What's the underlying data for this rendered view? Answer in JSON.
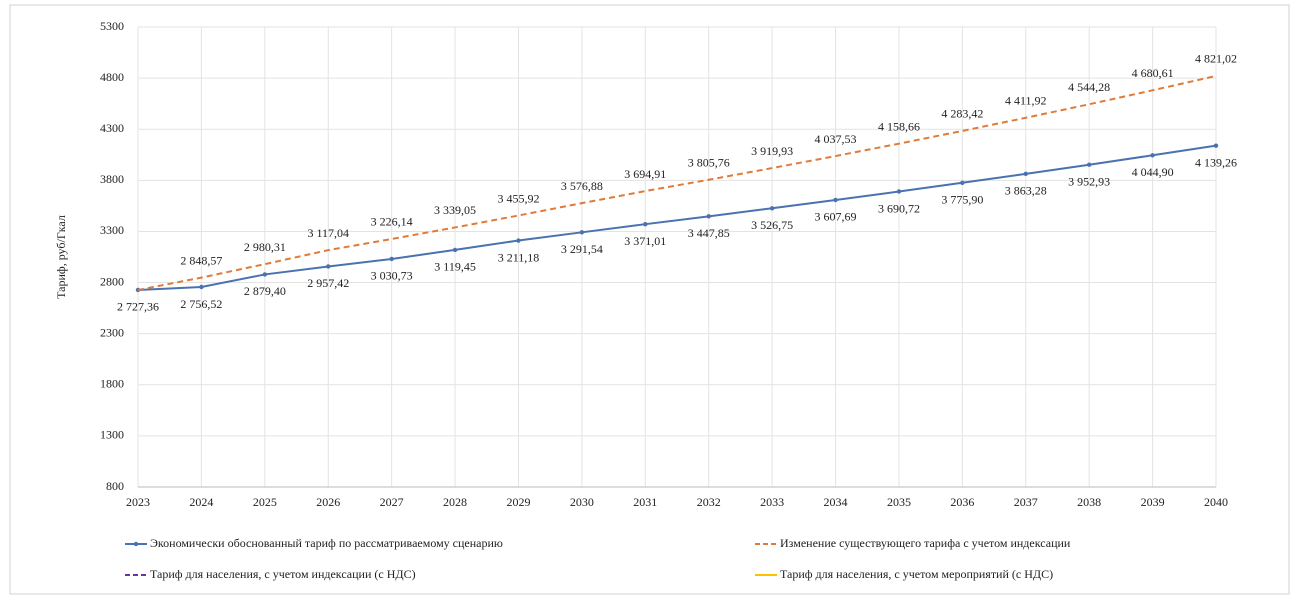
{
  "chart_data": {
    "type": "line",
    "y_label": "Тариф, руб/Гкал",
    "x": [
      2023,
      2024,
      2025,
      2026,
      2027,
      2028,
      2029,
      2030,
      2031,
      2032,
      2033,
      2034,
      2035,
      2036,
      2037,
      2038,
      2039,
      2040
    ],
    "xlim": [
      2023,
      2040
    ],
    "xticks": [
      2023,
      2024,
      2025,
      2026,
      2027,
      2028,
      2029,
      2030,
      2031,
      2032,
      2033,
      2034,
      2035,
      2036,
      2037,
      2038,
      2039,
      2040
    ],
    "ylim": [
      800,
      5300
    ],
    "yticks": [
      800,
      1300,
      1800,
      2300,
      2800,
      3300,
      3800,
      4300,
      4800,
      5300
    ],
    "grid": true,
    "legend": "bottom",
    "series": [
      {
        "name": "Экономически обоснованный тариф по рассматриваемому сценарию",
        "color": "#4a72b0",
        "line_style": "solid",
        "markers": true,
        "values": [
          2727.36,
          2756.52,
          2879.4,
          2957.42,
          3030.73,
          3119.45,
          3211.18,
          3291.54,
          3371.01,
          3447.85,
          3526.75,
          3607.69,
          3690.72,
          3775.9,
          3863.28,
          3952.93,
          4044.9,
          4139.26
        ],
        "value_labels": [
          "2 727,36",
          "2 756,52",
          "2 879,40",
          "2 957,42",
          "3 030,73",
          "3 119,45",
          "3 211,18",
          "3 291,54",
          "3 371,01",
          "3 447,85",
          "3 526,75",
          "3 607,69",
          "3 690,72",
          "3 775,90",
          "3 863,28",
          "3 952,93",
          "4 044,90",
          "4 139,26"
        ]
      },
      {
        "name": "Изменение существующего тарифа с учетом индексации",
        "color": "#e07b39",
        "line_style": "dashed",
        "markers": false,
        "values": [
          2727.36,
          2848.57,
          2980.31,
          3117.04,
          3226.14,
          3339.05,
          3455.92,
          3576.88,
          3694.91,
          3805.76,
          3919.93,
          4037.53,
          4158.66,
          4283.42,
          4411.92,
          4544.28,
          4680.61,
          4821.02
        ],
        "value_labels": [
          null,
          "2 848,57",
          "2 980,31",
          "3 117,04",
          "3 226,14",
          "3 339,05",
          "3 455,92",
          "3 576,88",
          "3 694,91",
          "3 805,76",
          "3 919,93",
          "4 037,53",
          "4 158,66",
          "4 283,42",
          "4 411,92",
          "4 544,28",
          "4 680,61",
          "4 821,02"
        ]
      },
      {
        "name": "Тариф для населения, с учетом индексации (с НДС)",
        "color": "#7030a0",
        "line_style": "dashed",
        "markers": false,
        "values": [
          null,
          null,
          null,
          null,
          null,
          null,
          null,
          null,
          null,
          null,
          null,
          null,
          null,
          null,
          null,
          null,
          null,
          null
        ]
      },
      {
        "name": "Тариф для населения, с учетом мероприятий (с НДС)",
        "color": "#ffc000",
        "line_style": "solid",
        "markers": false,
        "values": [
          null,
          null,
          null,
          null,
          null,
          null,
          null,
          null,
          null,
          null,
          null,
          null,
          null,
          null,
          null,
          null,
          null,
          null
        ]
      }
    ]
  }
}
